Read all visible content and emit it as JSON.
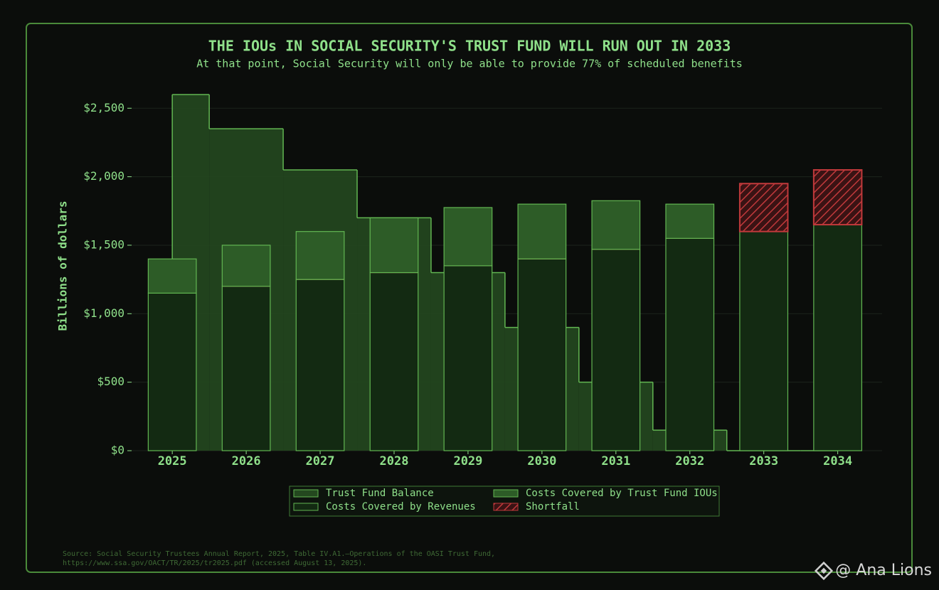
{
  "chart_data": {
    "type": "bar",
    "title": "THE IOUs IN SOCIAL SECURITY'S TRUST FUND WILL RUN OUT IN 2033",
    "subtitle": "At that point, Social Security will only be able to provide 77% of scheduled benefits",
    "ylabel": "Billions of dollars",
    "x": [
      2025,
      2026,
      2027,
      2028,
      2029,
      2030,
      2031,
      2032,
      2033,
      2034
    ],
    "xlim": [
      2024.45,
      2034.6
    ],
    "ylim": [
      0,
      2600
    ],
    "yticks": [
      {
        "value": 0,
        "label": "$0"
      },
      {
        "value": 500,
        "label": "$500"
      },
      {
        "value": 1000,
        "label": "$1,000"
      },
      {
        "value": 1500,
        "label": "$1,500"
      },
      {
        "value": 2000,
        "label": "$2,000"
      },
      {
        "value": 2500,
        "label": "$2,500"
      }
    ],
    "grid": true,
    "series": [
      {
        "name": "Trust Fund Balance",
        "kind": "step",
        "color": "#24481f",
        "values": [
          2600,
          2350,
          2050,
          1700,
          1300,
          900,
          500,
          150,
          0,
          0
        ]
      },
      {
        "name": "Costs Covered by Revenues",
        "kind": "stack",
        "color": "#132a12",
        "values": [
          1150,
          1200,
          1250,
          1300,
          1350,
          1400,
          1470,
          1550,
          1600,
          1650
        ]
      },
      {
        "name": "Costs Covered by Trust Fund IOUs",
        "kind": "stack",
        "color": "#2d5c27",
        "values": [
          250,
          300,
          350,
          400,
          425,
          400,
          355,
          250,
          null,
          null
        ]
      },
      {
        "name": "Shortfall",
        "kind": "stack",
        "color": "#c0393b",
        "hatch": true,
        "values": [
          null,
          null,
          null,
          null,
          null,
          null,
          null,
          null,
          350,
          400
        ]
      }
    ],
    "legend": "lower center",
    "source": [
      "Source: Social Security Trustees Annual Report, 2025, Table IV.A1.—Operations of the OASI Trust Fund,",
      "https://www.ssa.gov/OACT/TR/2025/tr2025.pdf (accessed August 13, 2025)."
    ],
    "watermark": "@ Ana Lions"
  }
}
